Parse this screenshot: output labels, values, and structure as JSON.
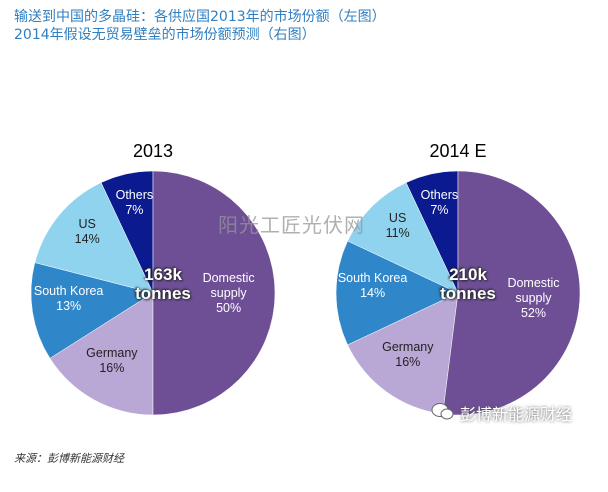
{
  "header": {
    "line1": "输送到中国的多晶硅：各供应国2013年的市场份额（左图）",
    "line2": "2014年假设无贸易壁垒的市场份额预测（右图）"
  },
  "chart_data": [
    {
      "type": "pie",
      "title": "2013",
      "center_label": "163k tonnes",
      "categories": [
        "Domestic supply",
        "Germany",
        "South Korea",
        "US",
        "Others"
      ],
      "values": [
        50,
        16,
        13,
        14,
        7
      ],
      "value_labels": [
        "50%",
        "16%",
        "13%",
        "14%",
        "7%"
      ],
      "colors": [
        "#6e4f96",
        "#b9a7d5",
        "#2f86c8",
        "#8fd3ef",
        "#0b1a8e"
      ]
    },
    {
      "type": "pie",
      "title": "2014 E",
      "center_label": "210k tonnes",
      "categories": [
        "Domestic supply",
        "Germany",
        "South Korea",
        "US",
        "Others"
      ],
      "values": [
        52,
        16,
        14,
        11,
        7
      ],
      "value_labels": [
        "52%",
        "16%",
        "14%",
        "11%",
        "7%"
      ],
      "colors": [
        "#6e4f96",
        "#b9a7d5",
        "#2f86c8",
        "#8fd3ef",
        "#0b1a8e"
      ]
    }
  ],
  "source": "来源：彭博新能源财经",
  "watermarks": [
    "阳光工匠光伏网",
    "彭博新能源财经"
  ]
}
